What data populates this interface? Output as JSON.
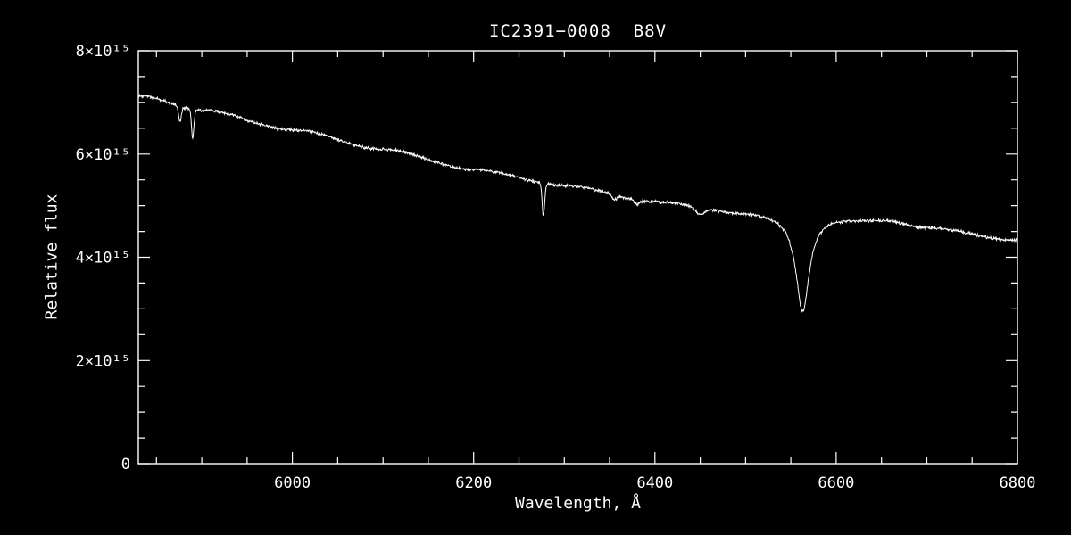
{
  "figure": {
    "background": "#000000",
    "foreground": "#ffffff"
  },
  "chart_data": {
    "type": "line",
    "title": "IC2391−0008  B8V",
    "xlabel": "Wavelength, Å",
    "ylabel": "Relative flux",
    "xlim": [
      5830,
      6800
    ],
    "ylim": [
      0,
      8000000000000000.0
    ],
    "grid": false,
    "legend": null,
    "line_color": "#ffffff",
    "x_major_ticks": [
      6000,
      6200,
      6400,
      6600,
      6800
    ],
    "x_tick_labels": [
      "6000",
      "6200",
      "6400",
      "6600",
      "6800"
    ],
    "x_minor_step": 50,
    "y_major_ticks": [
      0,
      2000000000000000.0,
      4000000000000000.0,
      6000000000000000.0,
      8000000000000000.0
    ],
    "y_tick_labels": [
      "0",
      "2×10¹⁵",
      "4×10¹⁵",
      "6×10¹⁵",
      "8×10¹⁵"
    ],
    "y_minor_step": 500000000000000.0,
    "continuum_points": {
      "wavelength": [
        5830,
        5900,
        6000,
        6100,
        6200,
        6300,
        6400,
        6500,
        6563,
        6650,
        6700,
        6800
      ],
      "flux": [
        7130000000000000.0,
        6850000000000000.0,
        6470000000000000.0,
        6090000000000000.0,
        5700000000000000.0,
        5390000000000000.0,
        5080000000000000.0,
        4870000000000000.0,
        4800000000000000.0,
        4730000000000000.0,
        4580000000000000.0,
        4330000000000000.0
      ]
    },
    "absorption_lines": [
      {
        "center": 5876,
        "depth": 300000000000000.0,
        "width": 1.5,
        "profile": "gaussian"
      },
      {
        "center": 5890,
        "depth": 550000000000000.0,
        "width": 1.3,
        "profile": "gaussian"
      },
      {
        "center": 6277,
        "depth": 620000000000000.0,
        "width": 1.4,
        "profile": "gaussian"
      },
      {
        "center": 6355,
        "depth": 90000000000000.0,
        "width": 2.5,
        "profile": "gaussian"
      },
      {
        "center": 6380,
        "depth": 80000000000000.0,
        "width": 2.5,
        "profile": "gaussian"
      },
      {
        "center": 6450,
        "depth": 140000000000000.0,
        "width": 5,
        "profile": "gaussian"
      },
      {
        "center": 6563,
        "depth": 1850000000000000.0,
        "width": 9,
        "profile": "lorentzian"
      }
    ],
    "noise_amplitude": 22000000000000.0,
    "sample_step": 0.5
  }
}
